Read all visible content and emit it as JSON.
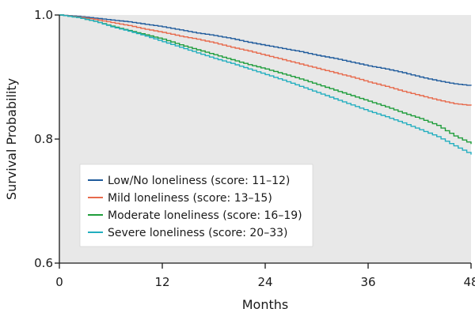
{
  "chart_data": {
    "type": "line",
    "xlabel": "Months",
    "ylabel": "Survival Probability",
    "xlim": [
      0,
      48
    ],
    "ylim": [
      0.6,
      1.0
    ],
    "x_ticks": [
      "0",
      "12",
      "24",
      "36",
      "48"
    ],
    "x_tick_values": [
      0,
      12,
      24,
      36,
      48
    ],
    "y_ticks": [
      "0.6",
      "0.8",
      "1.0"
    ],
    "y_tick_values": [
      0.6,
      0.8,
      1.0
    ],
    "grid": false,
    "background": "#e8e8e8",
    "legend_position": "bottom-left",
    "series": [
      {
        "name": "Low/No loneliness (score: 11–12)",
        "color": "#1f5b9c",
        "x": [
          0,
          2,
          4,
          6,
          8,
          10,
          12,
          14,
          16,
          18,
          20,
          22,
          24,
          26,
          28,
          30,
          32,
          34,
          36,
          38,
          40,
          42,
          44,
          46,
          48
        ],
        "y": [
          1.0,
          0.998,
          0.995,
          0.992,
          0.989,
          0.985,
          0.981,
          0.976,
          0.971,
          0.967,
          0.962,
          0.956,
          0.951,
          0.946,
          0.941,
          0.935,
          0.93,
          0.924,
          0.918,
          0.913,
          0.907,
          0.9,
          0.894,
          0.889,
          0.886
        ]
      },
      {
        "name": "Mild loneliness (score: 13–15)",
        "color": "#e76a4c",
        "x": [
          0,
          2,
          4,
          6,
          8,
          10,
          12,
          14,
          16,
          18,
          20,
          22,
          24,
          26,
          28,
          30,
          32,
          34,
          36,
          38,
          40,
          42,
          44,
          46,
          48
        ],
        "y": [
          1.0,
          0.997,
          0.993,
          0.988,
          0.983,
          0.977,
          0.972,
          0.966,
          0.961,
          0.955,
          0.948,
          0.942,
          0.935,
          0.928,
          0.921,
          0.914,
          0.907,
          0.9,
          0.892,
          0.885,
          0.877,
          0.87,
          0.863,
          0.857,
          0.854
        ]
      },
      {
        "name": "Moderate loneliness (score: 16–19)",
        "color": "#1f9d3b",
        "x": [
          0,
          2,
          4,
          6,
          8,
          10,
          12,
          14,
          16,
          18,
          20,
          22,
          24,
          26,
          28,
          30,
          32,
          34,
          36,
          38,
          40,
          42,
          44,
          46,
          48
        ],
        "y": [
          1.0,
          0.996,
          0.99,
          0.982,
          0.975,
          0.968,
          0.961,
          0.952,
          0.944,
          0.936,
          0.928,
          0.92,
          0.913,
          0.905,
          0.897,
          0.888,
          0.879,
          0.87,
          0.861,
          0.852,
          0.842,
          0.833,
          0.822,
          0.805,
          0.792
        ]
      },
      {
        "name": "Severe loneliness (score: 20–33)",
        "color": "#22aebf",
        "x": [
          0,
          2,
          4,
          6,
          8,
          10,
          12,
          14,
          16,
          18,
          20,
          22,
          24,
          26,
          28,
          30,
          32,
          34,
          36,
          38,
          40,
          42,
          44,
          46,
          48
        ],
        "y": [
          1.0,
          0.996,
          0.99,
          0.981,
          0.974,
          0.966,
          0.957,
          0.948,
          0.939,
          0.93,
          0.922,
          0.913,
          0.904,
          0.895,
          0.885,
          0.875,
          0.865,
          0.855,
          0.845,
          0.836,
          0.826,
          0.815,
          0.804,
          0.789,
          0.775
        ]
      }
    ]
  }
}
